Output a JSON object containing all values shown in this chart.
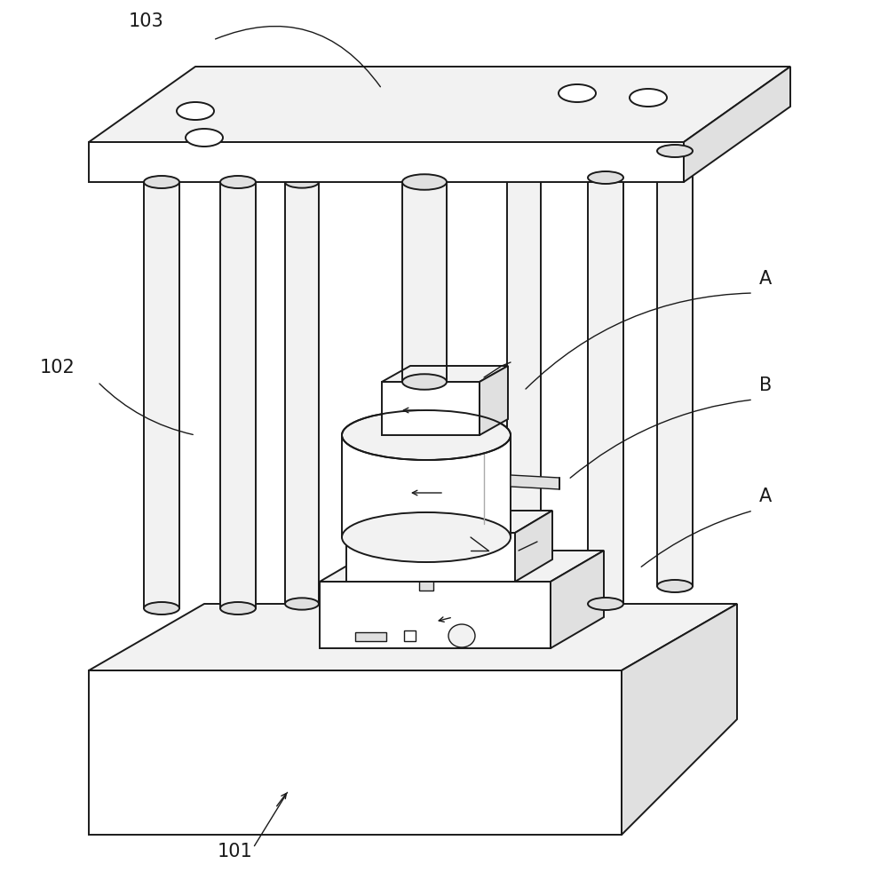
{
  "bg_color": "#ffffff",
  "lc": "#1a1a1a",
  "fc_white": "#ffffff",
  "fc_light": "#f2f2f2",
  "fc_mid": "#e0e0e0",
  "fc_dark": "#c8c8c8",
  "figsize": [
    10.0,
    9.91
  ],
  "dpi": 100,
  "label_103": "103",
  "label_102": "102",
  "label_101": "101",
  "label_A": "A",
  "label_B": "B"
}
